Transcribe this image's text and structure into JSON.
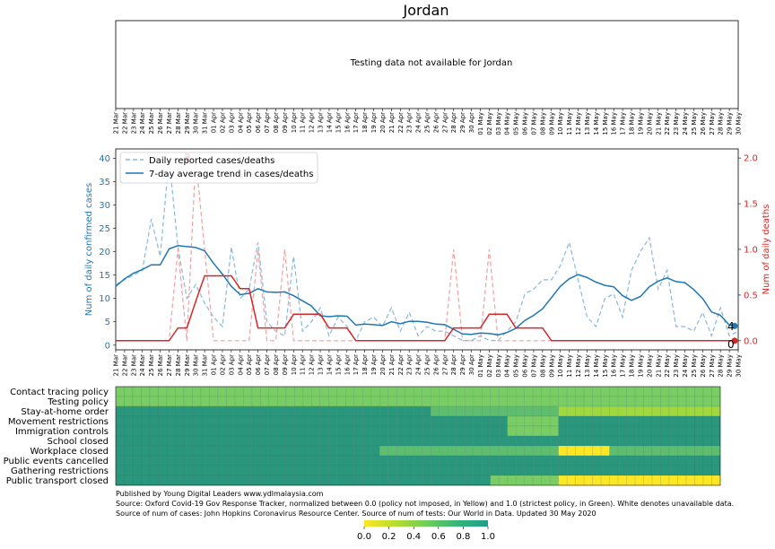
{
  "title": "Jordan",
  "testing_note": "Testing data not available for Jordan",
  "dates": [
    "21 Mar",
    "22 Mar",
    "23 Mar",
    "24 Mar",
    "25 Mar",
    "26 Mar",
    "27 Mar",
    "28 Mar",
    "29 Mar",
    "30 Mar",
    "31 Mar",
    "01 Apr",
    "02 Apr",
    "03 Apr",
    "04 Apr",
    "05 Apr",
    "06 Apr",
    "07 Apr",
    "08 Apr",
    "09 Apr",
    "10 Apr",
    "11 Apr",
    "12 Apr",
    "13 Apr",
    "14 Apr",
    "15 Apr",
    "16 Apr",
    "17 Apr",
    "18 Apr",
    "19 Apr",
    "20 Apr",
    "21 Apr",
    "22 Apr",
    "23 Apr",
    "24 Apr",
    "25 Apr",
    "26 Apr",
    "27 Apr",
    "28 Apr",
    "29 Apr",
    "30 Apr",
    "01 May",
    "02 May",
    "03 May",
    "04 May",
    "05 May",
    "06 May",
    "07 May",
    "08 May",
    "09 May",
    "10 May",
    "11 May",
    "12 May",
    "13 May",
    "14 May",
    "15 May",
    "16 May",
    "17 May",
    "18 May",
    "19 May",
    "20 May",
    "21 May",
    "22 May",
    "23 May",
    "24 May",
    "25 May",
    "26 May",
    "27 May",
    "28 May",
    "29 May",
    "30 May"
  ],
  "chart_data": [
    {
      "type": "line",
      "name": "cases-deaths",
      "left_axis": {
        "label": "Num of daily confirmed cases",
        "ylim": [
          -1,
          42
        ],
        "ticks": [
          0,
          5,
          10,
          15,
          20,
          25,
          30,
          35,
          40
        ],
        "color": "#1f77b4"
      },
      "right_axis": {
        "label": "Num of daily deaths",
        "ylim": [
          -0.1,
          2.1
        ],
        "ticks": [
          "0.0",
          "0.5",
          "1.0",
          "1.5",
          "2.0"
        ],
        "color": "#d62728"
      },
      "legend": {
        "placement": "top-left",
        "entries": [
          "Daily reported cases/deaths",
          "7-day average trend in cases/deaths"
        ]
      },
      "series": [
        {
          "name": "Daily reported cases/deaths",
          "axis": "left",
          "style": "dashed",
          "color": "#8ab8dc",
          "values": [
            13,
            14,
            15,
            16,
            27,
            19,
            40,
            21,
            10,
            13,
            9,
            6,
            4,
            21,
            10,
            12,
            22,
            5,
            3,
            2,
            19,
            3,
            5,
            8,
            2,
            6,
            4,
            1,
            5,
            6,
            4,
            8,
            3,
            7,
            2,
            4,
            3,
            3,
            2,
            1,
            1,
            2,
            1,
            1,
            3,
            5,
            11,
            12,
            14,
            14,
            17,
            22,
            14,
            6,
            4,
            10,
            11,
            6,
            16,
            20,
            23,
            12,
            16,
            4,
            4,
            3,
            7,
            2,
            8,
            2,
            3
          ]
        },
        {
          "name": "7-day average trend in cases/deaths",
          "axis": "left",
          "style": "solid",
          "color": "#1f77b4",
          "values": [
            12.6,
            14.2,
            15.4,
            16.2,
            17.2,
            17.2,
            20.6,
            21.3,
            21.1,
            20.9,
            20.2,
            17.5,
            15.2,
            12.6,
            10.8,
            11.1,
            12.1,
            11.4,
            11.3,
            11.4,
            10.6,
            9.5,
            8.4,
            6.3,
            6.1,
            6.3,
            6.2,
            4.3,
            4.5,
            4.4,
            4.2,
            5.0,
            4.6,
            5.1,
            5.1,
            4.9,
            4.5,
            4.4,
            3.4,
            2.4,
            2.3,
            2.6,
            2.5,
            2.2,
            2.7,
            3.6,
            5.3,
            6.4,
            7.8,
            10.2,
            12.6,
            14.2,
            15.1,
            14.5,
            13.5,
            12.8,
            12.5,
            10.6,
            9.6,
            10.4,
            12.5,
            13.7,
            14.4,
            13.6,
            13.4,
            11.9,
            10.0,
            7.1,
            6.4,
            4.3,
            4.1
          ]
        },
        {
          "name": "daily-deaths",
          "axis": "right",
          "style": "dashed",
          "color": "#f3a0a0",
          "values": [
            0,
            0,
            0,
            0,
            0,
            0,
            0,
            1,
            0,
            2,
            1,
            0,
            0,
            0,
            0,
            0,
            1,
            0,
            0,
            1,
            0,
            0,
            0,
            0,
            0,
            0,
            0,
            0,
            0,
            0,
            0,
            0,
            0,
            0,
            0,
            0,
            0,
            0,
            1,
            0,
            0,
            0,
            1,
            0,
            0,
            0,
            0,
            0,
            0,
            0,
            0,
            0,
            0,
            0,
            0,
            0,
            0,
            0,
            0,
            0,
            0,
            0,
            0,
            0,
            0,
            0,
            0,
            0,
            0,
            0,
            0
          ]
        },
        {
          "name": "deaths-trend",
          "axis": "right",
          "style": "solid",
          "color": "#d62728",
          "values": [
            0,
            0,
            0,
            0,
            0,
            0,
            0,
            0.14,
            0.14,
            0.43,
            0.71,
            0.71,
            0.71,
            0.71,
            0.57,
            0.57,
            0.14,
            0.14,
            0.14,
            0.14,
            0.29,
            0.29,
            0.29,
            0.29,
            0.14,
            0.14,
            0.14,
            0,
            0,
            0,
            0,
            0,
            0,
            0,
            0,
            0,
            0,
            0,
            0.14,
            0.14,
            0.14,
            0.14,
            0.29,
            0.29,
            0.29,
            0.14,
            0.14,
            0.14,
            0.14,
            0,
            0,
            0,
            0,
            0,
            0,
            0,
            0,
            0,
            0,
            0,
            0,
            0,
            0,
            0,
            0,
            0,
            0,
            0,
            0,
            0,
            0
          ]
        }
      ],
      "annotations": [
        {
          "text": "2",
          "at_date": "29 Mar",
          "value": 2,
          "axis": "right"
        },
        {
          "text": "4",
          "at_date": "30 May",
          "value": 4,
          "axis": "left"
        },
        {
          "text": "0",
          "at_date": "30 May",
          "value": 0,
          "axis": "right"
        }
      ]
    },
    {
      "type": "heatmap",
      "name": "policy-heatmap",
      "scale": [
        0,
        1
      ],
      "rows": [
        {
          "label": "Contact tracing policy",
          "runs": [
            [
              71,
              0.5
            ]
          ]
        },
        {
          "label": "Testing policy",
          "runs": [
            [
              71,
              0.5
            ]
          ]
        },
        {
          "label": "Stay-at-home order",
          "runs": [
            [
              37,
              1.0
            ],
            [
              15,
              0.67
            ],
            [
              19,
              0.33
            ]
          ]
        },
        {
          "label": "Movement restrictions",
          "runs": [
            [
              46,
              1.0
            ],
            [
              6,
              0.5
            ],
            [
              19,
              1.0
            ]
          ]
        },
        {
          "label": "Immigration controls",
          "runs": [
            [
              46,
              1.0
            ],
            [
              6,
              0.5
            ],
            [
              19,
              1.0
            ]
          ]
        },
        {
          "label": "School closed",
          "runs": [
            [
              71,
              1.0
            ]
          ]
        },
        {
          "label": "Workplace closed",
          "runs": [
            [
              31,
              1.0
            ],
            [
              21,
              0.67
            ],
            [
              6,
              0.0
            ],
            [
              13,
              0.67
            ]
          ]
        },
        {
          "label": "Public events cancelled",
          "runs": [
            [
              71,
              1.0
            ]
          ]
        },
        {
          "label": "Gathering restrictions",
          "runs": [
            [
              71,
              1.0
            ]
          ]
        },
        {
          "label": "Public transport closed",
          "runs": [
            [
              44,
              1.0
            ],
            [
              8,
              0.5
            ],
            [
              19,
              0.0
            ]
          ]
        }
      ],
      "colorbar": {
        "ticks": [
          "0.0",
          "0.2",
          "0.4",
          "0.6",
          "0.8",
          "1.0"
        ]
      }
    }
  ],
  "footer": [
    "Published by Young Digital Leaders www.ydlmalaysia.com",
    "Source: Oxford Covid-19 Gov Response Tracker, normalized between 0.0 (policy not imposed, in Yellow) and 1.0 (strictest policy, in Green). White denotes unavailable data.",
    "Source of num of cases: John Hopkins Coronavirus Resource Center. Source of num of tests: Our World in Data. Updated 30 May 2020"
  ]
}
